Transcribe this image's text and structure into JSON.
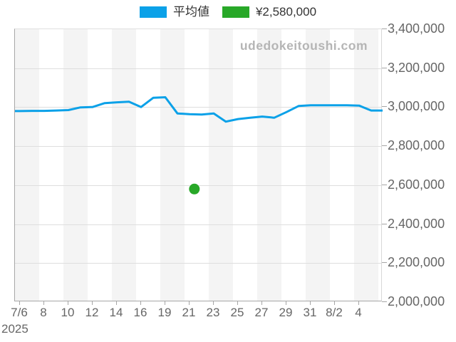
{
  "legend": {
    "items": [
      {
        "label": "平均値",
        "swatch_color": "#0ba1e8"
      },
      {
        "label": "¥2,580,000",
        "swatch_color": "#28a828"
      }
    ]
  },
  "watermark": {
    "text": "udedokeitoushi.com",
    "color": "#b5b5b5"
  },
  "chart_data": {
    "type": "line",
    "title": "",
    "series": [
      {
        "name": "平均値",
        "color": "#0ba1e8",
        "dates": [
          "7/6",
          "7/7",
          "7/8",
          "7/9",
          "7/10",
          "7/11",
          "7/12",
          "7/13",
          "7/14",
          "7/15",
          "7/16",
          "7/17",
          "7/19",
          "7/20",
          "7/21",
          "7/22",
          "7/23",
          "7/24",
          "7/25",
          "7/26",
          "7/27",
          "7/28",
          "7/29",
          "7/30",
          "7/31",
          "8/1",
          "8/2",
          "8/3",
          "8/4",
          "8/5"
        ],
        "values": [
          2980000,
          2981000,
          2981000,
          2983000,
          2985000,
          2999000,
          3001000,
          3021000,
          3025000,
          3028000,
          3001000,
          3048000,
          3051000,
          2968000,
          2964000,
          2962000,
          2968000,
          2926000,
          2939000,
          2946000,
          2952000,
          2946000,
          2975000,
          3006000,
          3010000,
          3010000,
          3010000,
          3010000,
          3008000,
          2983000
        ]
      }
    ],
    "marker_point": {
      "label": "¥2,580,000",
      "value": 2580000,
      "x_index": 14.4,
      "color": "#28a828"
    },
    "y_axis": {
      "min": 2000000,
      "max": 3400000,
      "tick_interval": 200000,
      "tick_labels": [
        "3,400,000",
        "3,200,000",
        "3,000,000",
        "2,800,000",
        "2,600,000",
        "2,400,000",
        "2,200,000",
        "2,000,000"
      ],
      "side": "right"
    },
    "x_axis": {
      "tick_labels": [
        "7/6",
        "8",
        "10",
        "12",
        "14",
        "16",
        "19",
        "21",
        "23",
        "25",
        "27",
        "29",
        "31",
        "8/2",
        "4"
      ],
      "year_label": "2025",
      "labels_every_n_points": 2
    },
    "grid": "horizontal",
    "plot_background": "alternating vertical gray/white bands",
    "legend_position": "top-center"
  }
}
